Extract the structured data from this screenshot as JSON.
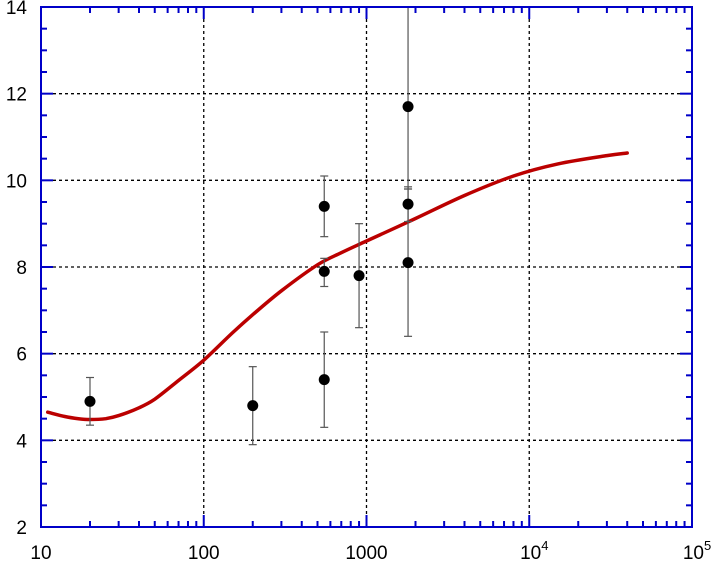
{
  "chart_data": {
    "type": "scatter",
    "title": "",
    "xlabel": "",
    "ylabel": "",
    "x_scale": "log",
    "xlim": [
      10,
      100000
    ],
    "ylim": [
      2,
      14
    ],
    "grid": true,
    "legend": "none",
    "x_ticks": [
      {
        "value": 10,
        "base": "10",
        "exp": ""
      },
      {
        "value": 100,
        "base": "100",
        "exp": ""
      },
      {
        "value": 1000,
        "base": "1000",
        "exp": ""
      },
      {
        "value": 10000,
        "base": "10",
        "exp": "4"
      },
      {
        "value": 100000,
        "base": "10",
        "exp": "5"
      }
    ],
    "y_ticks": [
      {
        "value": 2,
        "label": "2"
      },
      {
        "value": 4,
        "label": "4"
      },
      {
        "value": 6,
        "label": "6"
      },
      {
        "value": 8,
        "label": "8"
      },
      {
        "value": 10,
        "label": "10"
      },
      {
        "value": 12,
        "label": "12"
      },
      {
        "value": 14,
        "label": "14"
      }
    ],
    "points": [
      {
        "x": 20,
        "y": 4.9,
        "low": 4.35,
        "high": 5.45
      },
      {
        "x": 200,
        "y": 4.8,
        "low": 3.9,
        "high": 5.7
      },
      {
        "x": 550,
        "y": 9.4,
        "low": 8.7,
        "high": 10.1
      },
      {
        "x": 550,
        "y": 7.9,
        "low": 7.55,
        "high": 8.2
      },
      {
        "x": 550,
        "y": 5.4,
        "low": 4.3,
        "high": 6.5
      },
      {
        "x": 900,
        "y": 7.8,
        "low": 6.6,
        "high": 9.0
      },
      {
        "x": 1800,
        "y": 11.7,
        "low": 9.8,
        "high": 14.0
      },
      {
        "x": 1800,
        "y": 9.45,
        "low": 9.05,
        "high": 9.85
      },
      {
        "x": 1800,
        "y": 8.1,
        "low": 6.4,
        "high": 9.8
      }
    ],
    "curve": {
      "x": [
        11,
        14,
        17,
        20,
        25,
        30,
        40,
        50,
        70,
        100,
        150,
        200,
        300,
        500,
        700,
        1000,
        2000,
        4000,
        8000,
        15000,
        30000,
        40000
      ],
      "y": [
        4.65,
        4.55,
        4.5,
        4.48,
        4.5,
        4.57,
        4.75,
        4.95,
        5.38,
        5.85,
        6.48,
        6.9,
        7.45,
        8.05,
        8.33,
        8.6,
        9.12,
        9.65,
        10.1,
        10.38,
        10.57,
        10.63
      ]
    },
    "colors": {
      "axes": "#0000c8",
      "curve": "#bb0000",
      "points": "#000000",
      "errorbars": "#555555",
      "grid": "#000000"
    }
  }
}
